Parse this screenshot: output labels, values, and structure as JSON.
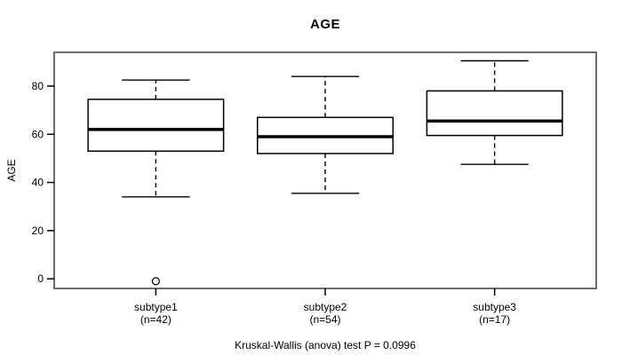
{
  "chart_data": {
    "type": "boxplot",
    "title": "AGE",
    "ylabel": "AGE",
    "xlabel": "",
    "annotation": "Kruskal-Wallis (anova) test P = 0.0996",
    "yticks": [
      0,
      20,
      40,
      60,
      80
    ],
    "ylim": [
      -4,
      94
    ],
    "grid": false,
    "legend": null,
    "categories": [
      {
        "label": "subtype1",
        "sublabel": "(n=42)"
      },
      {
        "label": "subtype2",
        "sublabel": "(n=54)"
      },
      {
        "label": "subtype3",
        "sublabel": "(n=17)"
      }
    ],
    "series": [
      {
        "name": "subtype1",
        "n": 42,
        "whisker_low": 34,
        "q1": 53,
        "median": 62,
        "q3": 74.5,
        "whisker_high": 82.5,
        "outliers": [
          -1
        ]
      },
      {
        "name": "subtype2",
        "n": 54,
        "whisker_low": 35.5,
        "q1": 52,
        "median": 59,
        "q3": 67,
        "whisker_high": 84,
        "outliers": []
      },
      {
        "name": "subtype3",
        "n": 17,
        "whisker_low": 47.5,
        "q1": 59.5,
        "median": 65.5,
        "q3": 78,
        "whisker_high": 90.5,
        "outliers": []
      }
    ]
  },
  "colors": {
    "background": "#ffffff",
    "frame": "#6b6b6b",
    "box_stroke": "#000000",
    "text": "#000000"
  }
}
